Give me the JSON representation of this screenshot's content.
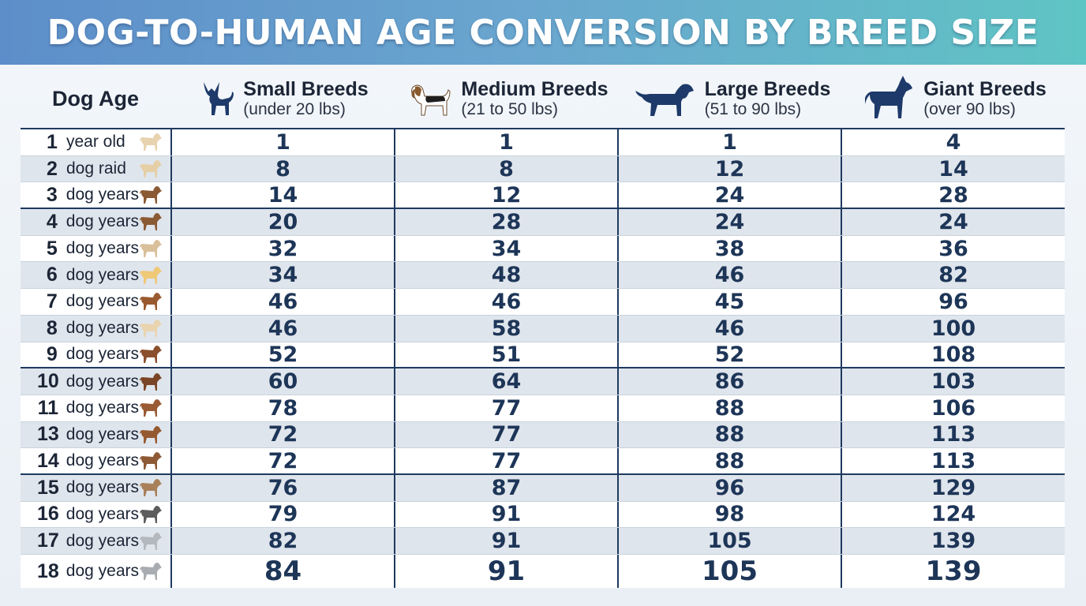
{
  "title": "DOG-TO-HUMAN AGE CONVERSION BY BREED SIZE",
  "header": {
    "age_label": "Dog Age",
    "columns": [
      {
        "name": "Small Breeds",
        "range": "(under 20 lbs)",
        "icon": "chihuahua-icon"
      },
      {
        "name": "Medium Breeds",
        "range": "(21 to 50 lbs)",
        "icon": "beagle-icon"
      },
      {
        "name": "Large Breeds",
        "range": "(51 to 90 lbs)",
        "icon": "labrador-icon"
      },
      {
        "name": "Giant Breeds",
        "range": "(over 90 lbs)",
        "icon": "great-dane-icon"
      }
    ]
  },
  "colors": {
    "accent": "#1e3a5f",
    "value_text": "#1d3557",
    "banner_start": "#5d8ec9",
    "banner_end": "#5fc4c4"
  },
  "rows": [
    {
      "age": "1",
      "unit": "year old",
      "values": [
        "1",
        "1",
        "1",
        "4"
      ],
      "dog_color": "#e8d3b0"
    },
    {
      "age": "2",
      "unit": "dog raid",
      "values": [
        "8",
        "8",
        "12",
        "14"
      ],
      "dog_color": "#e6cfa6"
    },
    {
      "age": "3",
      "unit": "dog years",
      "values": [
        "14",
        "12",
        "24",
        "28"
      ],
      "dog_color": "#8a5a34"
    },
    {
      "age": "4",
      "unit": "dog years",
      "values": [
        "20",
        "28",
        "24",
        "24"
      ],
      "dog_color": "#8a5a34"
    },
    {
      "age": "5",
      "unit": "dog years",
      "values": [
        "32",
        "34",
        "38",
        "36"
      ],
      "dog_color": "#d9c09a"
    },
    {
      "age": "6",
      "unit": "dog years",
      "values": [
        "34",
        "48",
        "46",
        "82"
      ],
      "dog_color": "#efc878"
    },
    {
      "age": "7",
      "unit": "dog years",
      "values": [
        "46",
        "46",
        "45",
        "96"
      ],
      "dog_color": "#9a5a30"
    },
    {
      "age": "8",
      "unit": "dog years",
      "values": [
        "46",
        "58",
        "46",
        "100"
      ],
      "dog_color": "#e9d4b0"
    },
    {
      "age": "9",
      "unit": "dog years",
      "values": [
        "52",
        "51",
        "52",
        "108"
      ],
      "dog_color": "#8a4f2c"
    },
    {
      "age": "10",
      "unit": "dog years",
      "values": [
        "60",
        "64",
        "86",
        "103"
      ],
      "dog_color": "#7a4426"
    },
    {
      "age": "11",
      "unit": "dog years",
      "values": [
        "78",
        "77",
        "88",
        "106"
      ],
      "dog_color": "#9a5a34"
    },
    {
      "age": "13",
      "unit": "dog years",
      "values": [
        "72",
        "77",
        "88",
        "113"
      ],
      "dog_color": "#955a32"
    },
    {
      "age": "14",
      "unit": "dog years",
      "values": [
        "72",
        "77",
        "88",
        "113"
      ],
      "dog_color": "#8e5a36"
    },
    {
      "age": "15",
      "unit": "dog years",
      "values": [
        "76",
        "87",
        "96",
        "129"
      ],
      "dog_color": "#a8805a"
    },
    {
      "age": "16",
      "unit": "dog years",
      "values": [
        "79",
        "91",
        "98",
        "124"
      ],
      "dog_color": "#5c5c5c"
    },
    {
      "age": "17",
      "unit": "dog years",
      "values": [
        "82",
        "91",
        "105",
        "139"
      ],
      "dog_color": "#b4b8bc"
    },
    {
      "age": "18",
      "unit": "dog years",
      "values": [
        "84",
        "91",
        "105",
        "139"
      ],
      "dog_color": "#a9adb2"
    }
  ]
}
